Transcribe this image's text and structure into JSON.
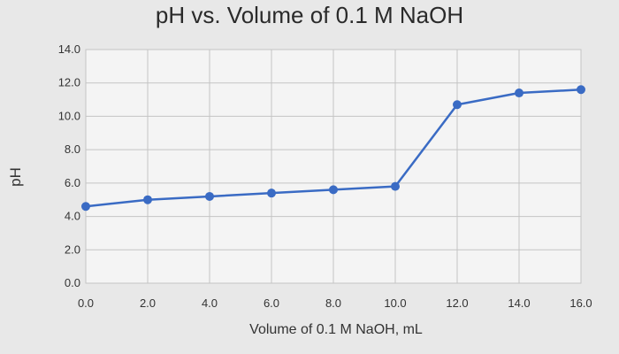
{
  "chart_data": {
    "type": "line",
    "title": "pH vs. Volume of 0.1 M NaOH",
    "xlabel": "Volume of 0.1 M NaOH, mL",
    "ylabel": "pH",
    "xlim": [
      0,
      16
    ],
    "ylim": [
      0,
      14
    ],
    "x_ticks": [
      "0.0",
      "2.0",
      "4.0",
      "6.0",
      "8.0",
      "10.0",
      "12.0",
      "14.0",
      "16.0"
    ],
    "y_ticks": [
      "0.0",
      "2.0",
      "4.0",
      "6.0",
      "8.0",
      "10.0",
      "12.0",
      "14.0"
    ],
    "grid": true,
    "legend": "none",
    "series": [
      {
        "color": "#3a6bc4",
        "x": [
          0,
          2,
          4,
          6,
          8,
          10,
          12,
          14,
          16
        ],
        "y": [
          4.6,
          5.0,
          5.2,
          5.4,
          5.6,
          5.8,
          10.7,
          11.4,
          11.6
        ]
      }
    ]
  }
}
